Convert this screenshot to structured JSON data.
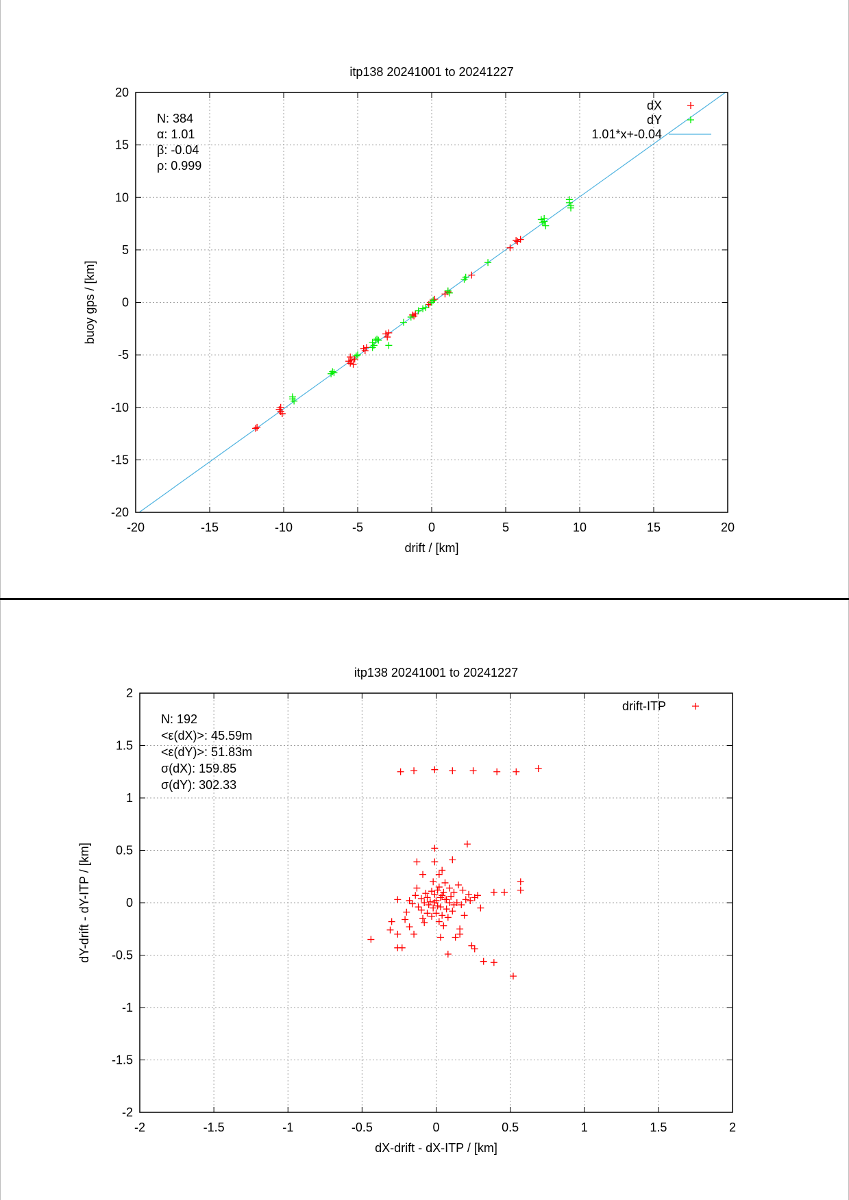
{
  "chart_data": [
    {
      "type": "scatter",
      "title": "itp138 20241001 to 20241227",
      "xlabel": "drift / [km]",
      "ylabel": "buoy gps / [km]",
      "xlim": [
        -20,
        20
      ],
      "ylim": [
        -20,
        20
      ],
      "xticks": [
        -20,
        -15,
        -10,
        -5,
        0,
        5,
        10,
        15,
        20
      ],
      "yticks": [
        -20,
        -15,
        -10,
        -5,
        0,
        5,
        10,
        15,
        20
      ],
      "xtick_labels": [
        "-20",
        "-15",
        "-10",
        "-5",
        "0",
        "5",
        "10",
        "15",
        "20"
      ],
      "ytick_labels": [
        "-20",
        "-15",
        "-10",
        "-5",
        "0",
        "5",
        "10",
        "15",
        "20"
      ],
      "grid": true,
      "legend_position": "top-right",
      "stats": [
        "N: 384",
        "α: 1.01",
        "β: -0.04",
        "ρ: 0.999"
      ],
      "series": [
        {
          "name": "dX",
          "color": "#ff0000",
          "marker": "plus",
          "points": [
            [
              -11.9,
              -12.0
            ],
            [
              -11.8,
              -11.9
            ],
            [
              -10.3,
              -10.2
            ],
            [
              -10.2,
              -10.4
            ],
            [
              -10.1,
              -10.6
            ],
            [
              -10.2,
              -10.0
            ],
            [
              -5.5,
              -5.2
            ],
            [
              -5.4,
              -5.5
            ],
            [
              -5.5,
              -5.8
            ],
            [
              -5.3,
              -5.9
            ],
            [
              -5.2,
              -5.4
            ],
            [
              -5.6,
              -5.6
            ],
            [
              -4.6,
              -4.4
            ],
            [
              -4.5,
              -4.6
            ],
            [
              -4.4,
              -4.3
            ],
            [
              -3.1,
              -3.0
            ],
            [
              -3.0,
              -3.3
            ],
            [
              -2.9,
              -2.9
            ],
            [
              -1.3,
              -1.2
            ],
            [
              -1.1,
              -1.1
            ],
            [
              -1.2,
              -1.3
            ],
            [
              -0.2,
              -0.2
            ],
            [
              -0.1,
              0.0
            ],
            [
              0.2,
              0.3
            ],
            [
              0.9,
              0.8
            ],
            [
              1.1,
              1.0
            ],
            [
              2.7,
              2.6
            ],
            [
              5.3,
              5.2
            ],
            [
              5.8,
              5.8
            ],
            [
              6.0,
              6.0
            ],
            [
              5.7,
              5.9
            ]
          ]
        },
        {
          "name": "dY",
          "color": "#00ee00",
          "marker": "plus",
          "points": [
            [
              -9.4,
              -9.2
            ],
            [
              -9.3,
              -9.4
            ],
            [
              -9.4,
              -9.0
            ],
            [
              -6.8,
              -6.8
            ],
            [
              -6.6,
              -6.7
            ],
            [
              -6.7,
              -6.6
            ],
            [
              -5.1,
              -5.1
            ],
            [
              -5.0,
              -5.0
            ],
            [
              -4.0,
              -3.8
            ],
            [
              -3.8,
              -3.6
            ],
            [
              -3.9,
              -4.1
            ],
            [
              -3.7,
              -3.5
            ],
            [
              -3.6,
              -3.6
            ],
            [
              -4.0,
              -4.3
            ],
            [
              -2.9,
              -4.1
            ],
            [
              -1.9,
              -1.9
            ],
            [
              -1.4,
              -1.4
            ],
            [
              -0.9,
              -0.8
            ],
            [
              -0.6,
              -0.6
            ],
            [
              -0.4,
              -0.5
            ],
            [
              0.0,
              0.0
            ],
            [
              0.1,
              0.2
            ],
            [
              1.1,
              1.1
            ],
            [
              1.2,
              0.9
            ],
            [
              2.2,
              2.2
            ],
            [
              2.3,
              2.4
            ],
            [
              3.8,
              3.8
            ],
            [
              7.5,
              7.6
            ],
            [
              7.6,
              8.0
            ],
            [
              7.4,
              7.9
            ],
            [
              7.7,
              7.3
            ],
            [
              7.6,
              7.7
            ],
            [
              9.3,
              9.5
            ],
            [
              9.4,
              9.2
            ],
            [
              9.3,
              9.8
            ],
            [
              9.4,
              9.0
            ]
          ]
        }
      ],
      "fit_line": {
        "name": "1.01*x+-0.04",
        "slope": 1.01,
        "intercept": -0.04,
        "color": "#4fb3e0"
      }
    },
    {
      "type": "scatter",
      "title": "itp138 20241001 to 20241227",
      "xlabel": "dX-drift - dX-ITP / [km]",
      "ylabel": "dY-drift - dY-ITP / [km]",
      "xlim": [
        -2,
        2
      ],
      "ylim": [
        -2,
        2
      ],
      "xticks": [
        -2,
        -1.5,
        -1,
        -0.5,
        0,
        0.5,
        1,
        1.5,
        2
      ],
      "yticks": [
        -2,
        -1.5,
        -1,
        -0.5,
        0,
        0.5,
        1,
        1.5,
        2
      ],
      "xtick_labels": [
        "-2",
        "-1.5",
        "-1",
        "-0.5",
        "0",
        "0.5",
        "1",
        "1.5",
        "2"
      ],
      "ytick_labels": [
        "-2",
        "-1.5",
        "-1",
        "-0.5",
        "0",
        "0.5",
        "1",
        "1.5",
        "2"
      ],
      "grid": true,
      "legend_position": "top-right",
      "stats": [
        "N: 192",
        "<ε(dX)>:  45.59m",
        "<ε(dY)>: 51.83m",
        "σ(dX):  159.85",
        "σ(dY):  302.33"
      ],
      "series": [
        {
          "name": "drift-ITP",
          "color": "#ff0000",
          "marker": "plus",
          "points": [
            [
              -0.24,
              1.25
            ],
            [
              -0.15,
              1.26
            ],
            [
              -0.01,
              1.27
            ],
            [
              0.11,
              1.26
            ],
            [
              0.25,
              1.26
            ],
            [
              0.41,
              1.25
            ],
            [
              0.54,
              1.25
            ],
            [
              0.69,
              1.28
            ],
            [
              -0.01,
              0.52
            ],
            [
              0.21,
              0.56
            ],
            [
              -0.13,
              0.39
            ],
            [
              0.11,
              0.41
            ],
            [
              -0.01,
              0.39
            ],
            [
              0.02,
              0.27
            ],
            [
              -0.09,
              0.27
            ],
            [
              0.04,
              0.31
            ],
            [
              0.57,
              0.2
            ],
            [
              0.57,
              0.12
            ],
            [
              0.46,
              0.1
            ],
            [
              0.39,
              0.1
            ],
            [
              -0.26,
              0.03
            ],
            [
              -0.44,
              -0.35
            ],
            [
              -0.31,
              -0.26
            ],
            [
              -0.3,
              -0.18
            ],
            [
              -0.26,
              -0.3
            ],
            [
              -0.26,
              -0.43
            ],
            [
              -0.23,
              -0.43
            ],
            [
              -0.21,
              -0.16
            ],
            [
              -0.18,
              -0.23
            ],
            [
              -0.15,
              -0.3
            ],
            [
              -0.1,
              -0.07
            ],
            [
              -0.08,
              -0.19
            ],
            [
              -0.06,
              -0.1
            ],
            [
              0.03,
              -0.33
            ],
            [
              0.08,
              -0.49
            ],
            [
              0.13,
              -0.33
            ],
            [
              0.16,
              -0.3
            ],
            [
              0.16,
              -0.25
            ],
            [
              0.24,
              -0.41
            ],
            [
              0.26,
              -0.44
            ],
            [
              0.32,
              -0.56
            ],
            [
              0.39,
              -0.57
            ],
            [
              0.52,
              -0.7
            ],
            [
              0.3,
              -0.05
            ],
            [
              0.28,
              0.07
            ],
            [
              0.22,
              0.08
            ],
            [
              0.2,
              0.03
            ],
            [
              0.18,
              0.12
            ],
            [
              0.15,
              0.17
            ],
            [
              0.12,
              -0.02
            ],
            [
              0.1,
              0.06
            ],
            [
              0.09,
              0.14
            ],
            [
              0.07,
              -0.06
            ],
            [
              0.06,
              0.03
            ],
            [
              0.05,
              0.1
            ],
            [
              0.04,
              -0.12
            ],
            [
              0.03,
              0.05
            ],
            [
              0.02,
              0.15
            ],
            [
              0.01,
              -0.03
            ],
            [
              0.0,
              0.02
            ],
            [
              -0.01,
              0.08
            ],
            [
              -0.02,
              -0.05
            ],
            [
              -0.03,
              0.11
            ],
            [
              -0.04,
              0.01
            ],
            [
              -0.05,
              -0.02
            ],
            [
              -0.06,
              0.05
            ],
            [
              -0.07,
              0.09
            ],
            [
              -0.08,
              0.0
            ],
            [
              -0.1,
              0.04
            ],
            [
              -0.12,
              -0.04
            ],
            [
              -0.13,
              0.14
            ],
            [
              -0.14,
              0.07
            ],
            [
              -0.16,
              -0.01
            ],
            [
              -0.18,
              0.02
            ],
            [
              -0.2,
              -0.09
            ],
            [
              0.0,
              -0.1
            ],
            [
              0.02,
              -0.18
            ],
            [
              0.05,
              -0.22
            ],
            [
              0.08,
              -0.14
            ],
            [
              0.11,
              -0.08
            ],
            [
              0.14,
              0.0
            ],
            [
              0.17,
              -0.02
            ],
            [
              0.19,
              -0.12
            ],
            [
              0.23,
              0.02
            ],
            [
              0.26,
              0.05
            ],
            [
              -0.02,
              0.2
            ],
            [
              0.06,
              0.19
            ],
            [
              0.09,
              0.0
            ],
            [
              0.01,
              0.12
            ],
            [
              -0.03,
              -0.13
            ],
            [
              0.04,
              0.07
            ],
            [
              0.12,
              0.1
            ],
            [
              -0.09,
              -0.15
            ],
            [
              0.07,
              0.03
            ],
            [
              0.03,
              -0.04
            ],
            [
              -0.01,
              0.0
            ]
          ]
        }
      ]
    }
  ]
}
